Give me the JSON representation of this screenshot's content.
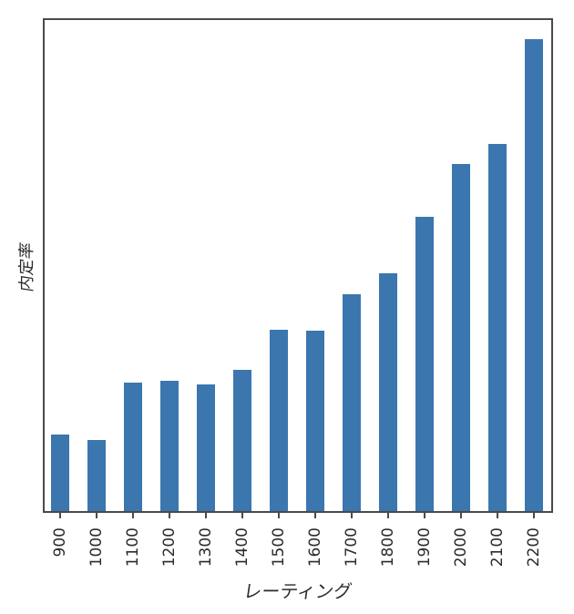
{
  "figure": {
    "background": "#ffffff"
  },
  "chart_data": {
    "type": "bar",
    "title": "",
    "xlabel": "レーティング",
    "ylabel": "内定率",
    "categories": [
      "900",
      "1000",
      "1100",
      "1200",
      "1300",
      "1400",
      "1500",
      "1600",
      "1700",
      "1800",
      "1900",
      "2000",
      "2100",
      "2200"
    ],
    "values": [
      0.156,
      0.145,
      0.262,
      0.265,
      0.258,
      0.288,
      0.369,
      0.367,
      0.442,
      0.484,
      0.599,
      0.707,
      0.748,
      0.961
    ],
    "ylim": [
      0,
      1
    ],
    "y_axis_ticks": "none",
    "x_tick_rotation_deg": 90,
    "grid": false,
    "legend": "none",
    "bar_color": "#3b76af",
    "axis_color": "#4a4a4a",
    "tick_label_color": "#2b2b2b"
  }
}
